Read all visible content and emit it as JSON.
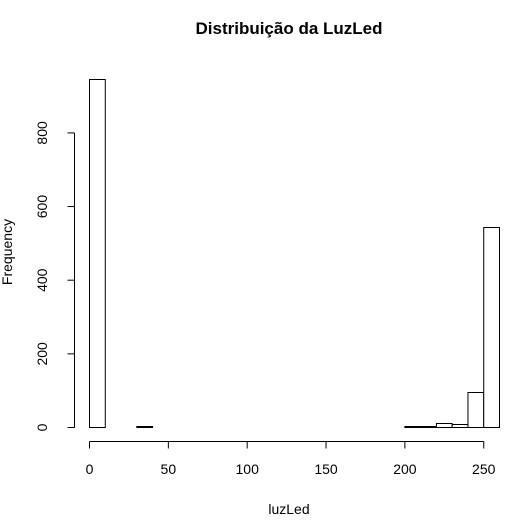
{
  "chart_data": {
    "type": "bar",
    "title": "Distribuição da LuzLed",
    "xlabel": "luzLed",
    "ylabel": "Frequency",
    "bin_width": 10,
    "bins": [
      {
        "start": 0,
        "end": 10,
        "count": 945
      },
      {
        "start": 10,
        "end": 20,
        "count": 0
      },
      {
        "start": 20,
        "end": 30,
        "count": 0
      },
      {
        "start": 30,
        "end": 40,
        "count": 2
      },
      {
        "start": 40,
        "end": 50,
        "count": 0
      },
      {
        "start": 50,
        "end": 60,
        "count": 0
      },
      {
        "start": 60,
        "end": 70,
        "count": 0
      },
      {
        "start": 70,
        "end": 80,
        "count": 0
      },
      {
        "start": 80,
        "end": 90,
        "count": 0
      },
      {
        "start": 90,
        "end": 100,
        "count": 0
      },
      {
        "start": 100,
        "end": 110,
        "count": 0
      },
      {
        "start": 110,
        "end": 120,
        "count": 1
      },
      {
        "start": 120,
        "end": 130,
        "count": 1
      },
      {
        "start": 130,
        "end": 140,
        "count": 1
      },
      {
        "start": 140,
        "end": 150,
        "count": 1
      },
      {
        "start": 150,
        "end": 160,
        "count": 1
      },
      {
        "start": 160,
        "end": 170,
        "count": 1
      },
      {
        "start": 170,
        "end": 180,
        "count": 1
      },
      {
        "start": 180,
        "end": 190,
        "count": 1
      },
      {
        "start": 190,
        "end": 200,
        "count": 1
      },
      {
        "start": 200,
        "end": 210,
        "count": 4
      },
      {
        "start": 210,
        "end": 220,
        "count": 2
      },
      {
        "start": 220,
        "end": 230,
        "count": 12
      },
      {
        "start": 230,
        "end": 240,
        "count": 9
      },
      {
        "start": 240,
        "end": 250,
        "count": 94
      },
      {
        "start": 250,
        "end": 260,
        "count": 542
      }
    ],
    "xlim": [
      0,
      260
    ],
    "ylim": [
      0,
      945
    ],
    "x_ticks": [
      0,
      50,
      100,
      150,
      200,
      250
    ],
    "y_ticks": [
      0,
      200,
      400,
      600,
      800
    ],
    "grid": false,
    "legend": "none"
  }
}
